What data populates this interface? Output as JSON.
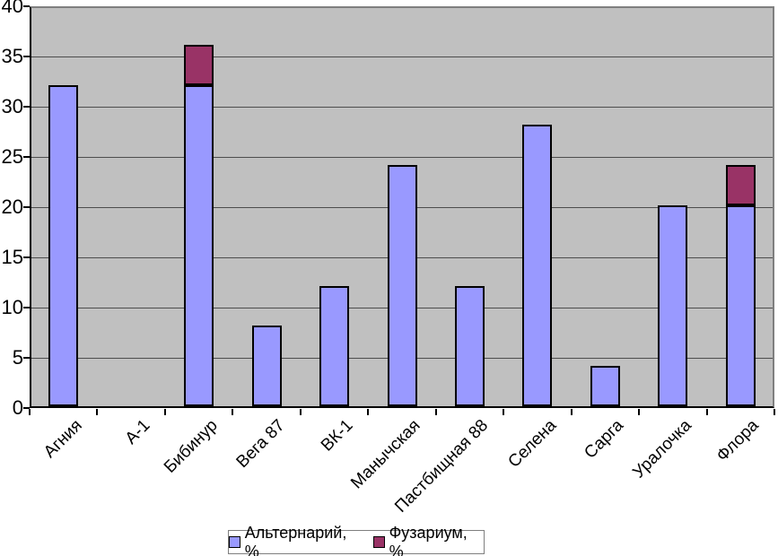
{
  "chart_data": {
    "type": "bar",
    "stacked": true,
    "title": "",
    "xlabel": "",
    "ylabel": "",
    "categories": [
      "Агния",
      "А-1",
      "Бибинур",
      "Вега 87",
      "ВК-1",
      "Манычская",
      "Пастбищная 88",
      "Селена",
      "Сарга",
      "Уралочка",
      "Флора"
    ],
    "series": [
      {
        "name": "Альтернарий, %",
        "color": "#9999ff",
        "values": [
          32,
          0,
          32,
          8,
          12,
          24,
          12,
          28,
          4,
          20,
          20
        ]
      },
      {
        "name": "Фузариум, %",
        "color": "#993366",
        "values": [
          0,
          0,
          4,
          0,
          0,
          0,
          0,
          0,
          0,
          0,
          4
        ]
      }
    ],
    "ylim": [
      0,
      40
    ],
    "yticks": [
      0,
      5,
      10,
      15,
      20,
      25,
      30,
      35,
      40
    ],
    "grid": true,
    "legend_position": "bottom",
    "plot_bg": "#c0c0c0",
    "gridline_color": "#4d4d4d"
  }
}
